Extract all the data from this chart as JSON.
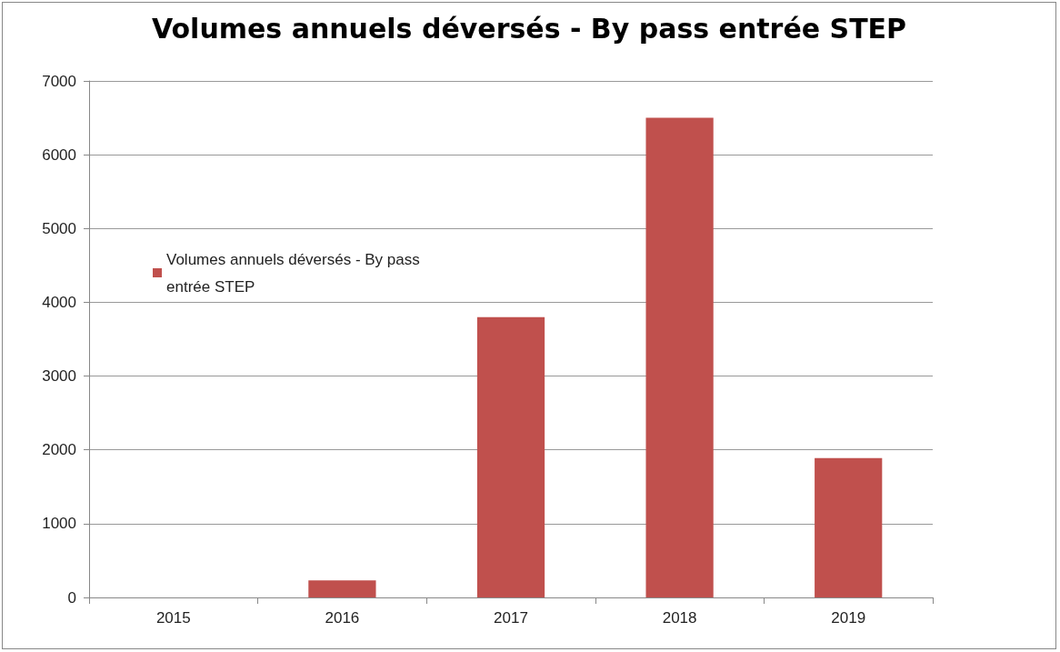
{
  "chart_data": {
    "type": "bar",
    "title": "Volumes annuels déversés - By pass entrée STEP",
    "categories": [
      "2015",
      "2016",
      "2017",
      "2018",
      "2019"
    ],
    "series": [
      {
        "name": "Volumes annuels déversés - By pass entrée STEP",
        "color": "#c0504d",
        "values": [
          0,
          230,
          3800,
          6500,
          1890
        ]
      }
    ],
    "ylim": [
      0,
      7000
    ],
    "yticks": [
      0,
      1000,
      2000,
      3000,
      4000,
      5000,
      6000,
      7000
    ],
    "grid": "y",
    "legend": "left"
  }
}
